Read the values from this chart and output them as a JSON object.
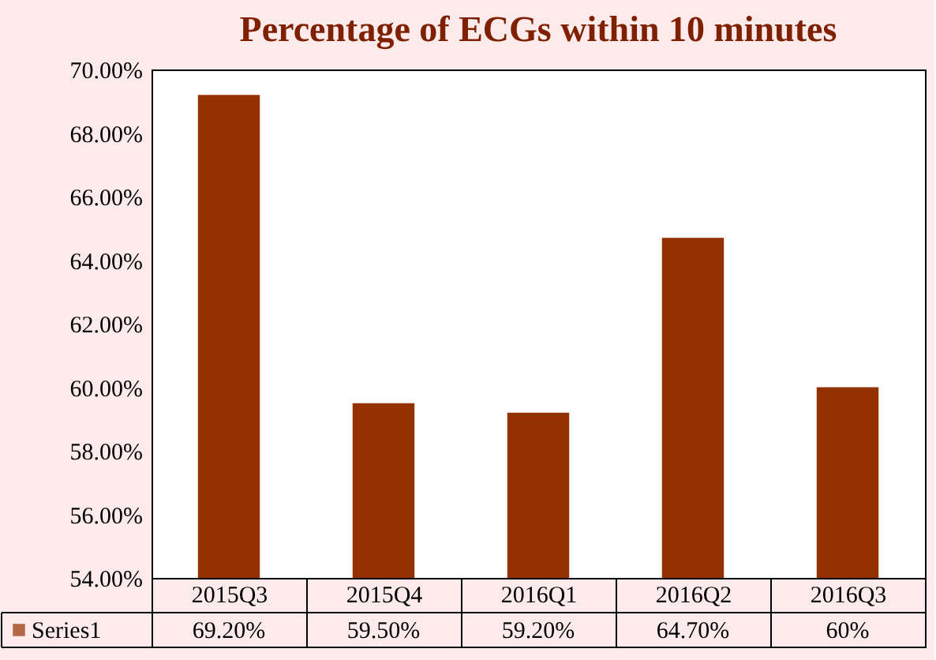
{
  "chart_data": {
    "type": "bar",
    "title": "Percentage of ECGs within 10 minutes",
    "categories": [
      "2015Q3",
      "2015Q4",
      "2016Q1",
      "2016Q2",
      "2016Q3"
    ],
    "series": [
      {
        "name": "Series1",
        "color": "#943100",
        "values": [
          69.2,
          59.5,
          59.2,
          64.7,
          60
        ],
        "value_labels": [
          "69.20%",
          "59.50%",
          "59.20%",
          "64.70%",
          "60%"
        ]
      }
    ],
    "ylim": [
      54,
      70
    ],
    "yticks": [
      {
        "value": 54,
        "label": "54.00%"
      },
      {
        "value": 56,
        "label": "56.00%"
      },
      {
        "value": 58,
        "label": "58.00%"
      },
      {
        "value": 60,
        "label": "60.00%"
      },
      {
        "value": 62,
        "label": "62.00%"
      },
      {
        "value": 64,
        "label": "64.00%"
      },
      {
        "value": 66,
        "label": "66.00%"
      },
      {
        "value": 68,
        "label": "68.00%"
      },
      {
        "value": 70,
        "label": "70.00%"
      }
    ],
    "legend": "bottom"
  }
}
